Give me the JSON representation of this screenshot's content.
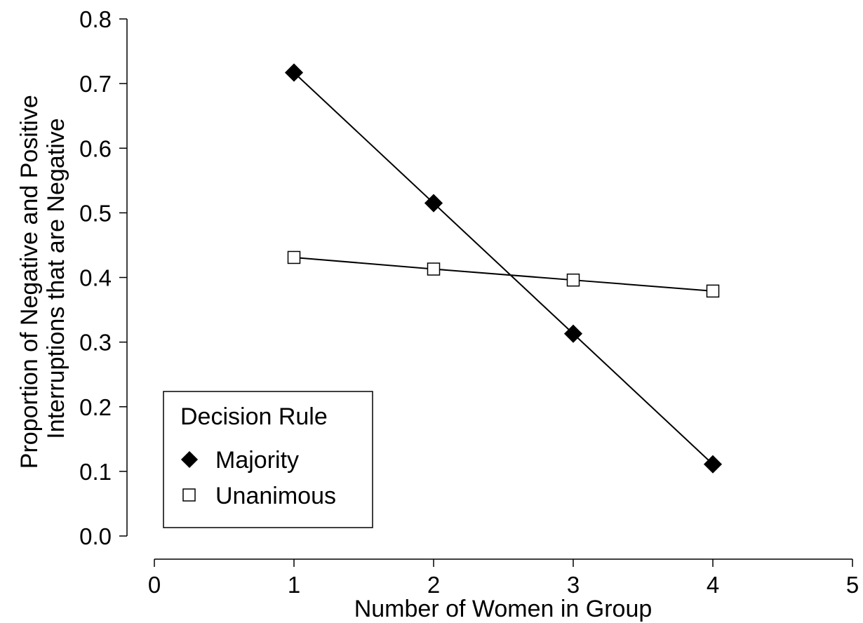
{
  "chart_data": {
    "type": "line",
    "xlabel": "Number of Women in Group",
    "ylabel_lines": [
      "Proportion of Negative and Positive",
      "Interruptions that are Negative"
    ],
    "xlim": [
      0,
      5
    ],
    "ylim": [
      0,
      0.8
    ],
    "x_ticks": [
      "0",
      "1",
      "2",
      "3",
      "4",
      "5"
    ],
    "y_ticks": [
      "0.0",
      "0.1",
      "0.2",
      "0.3",
      "0.4",
      "0.5",
      "0.6",
      "0.7",
      "0.8"
    ],
    "grid": false,
    "legend": {
      "title": "Decision Rule",
      "placement": "bottom-left"
    },
    "series": [
      {
        "name": "Majority",
        "marker": "filled-diamond",
        "x": [
          1,
          2,
          3,
          4
        ],
        "y": [
          0.717,
          0.515,
          0.313,
          0.111
        ]
      },
      {
        "name": "Unanimous",
        "marker": "open-square",
        "x": [
          1,
          2,
          3,
          4
        ],
        "y": [
          0.431,
          0.413,
          0.396,
          0.379
        ]
      }
    ]
  }
}
